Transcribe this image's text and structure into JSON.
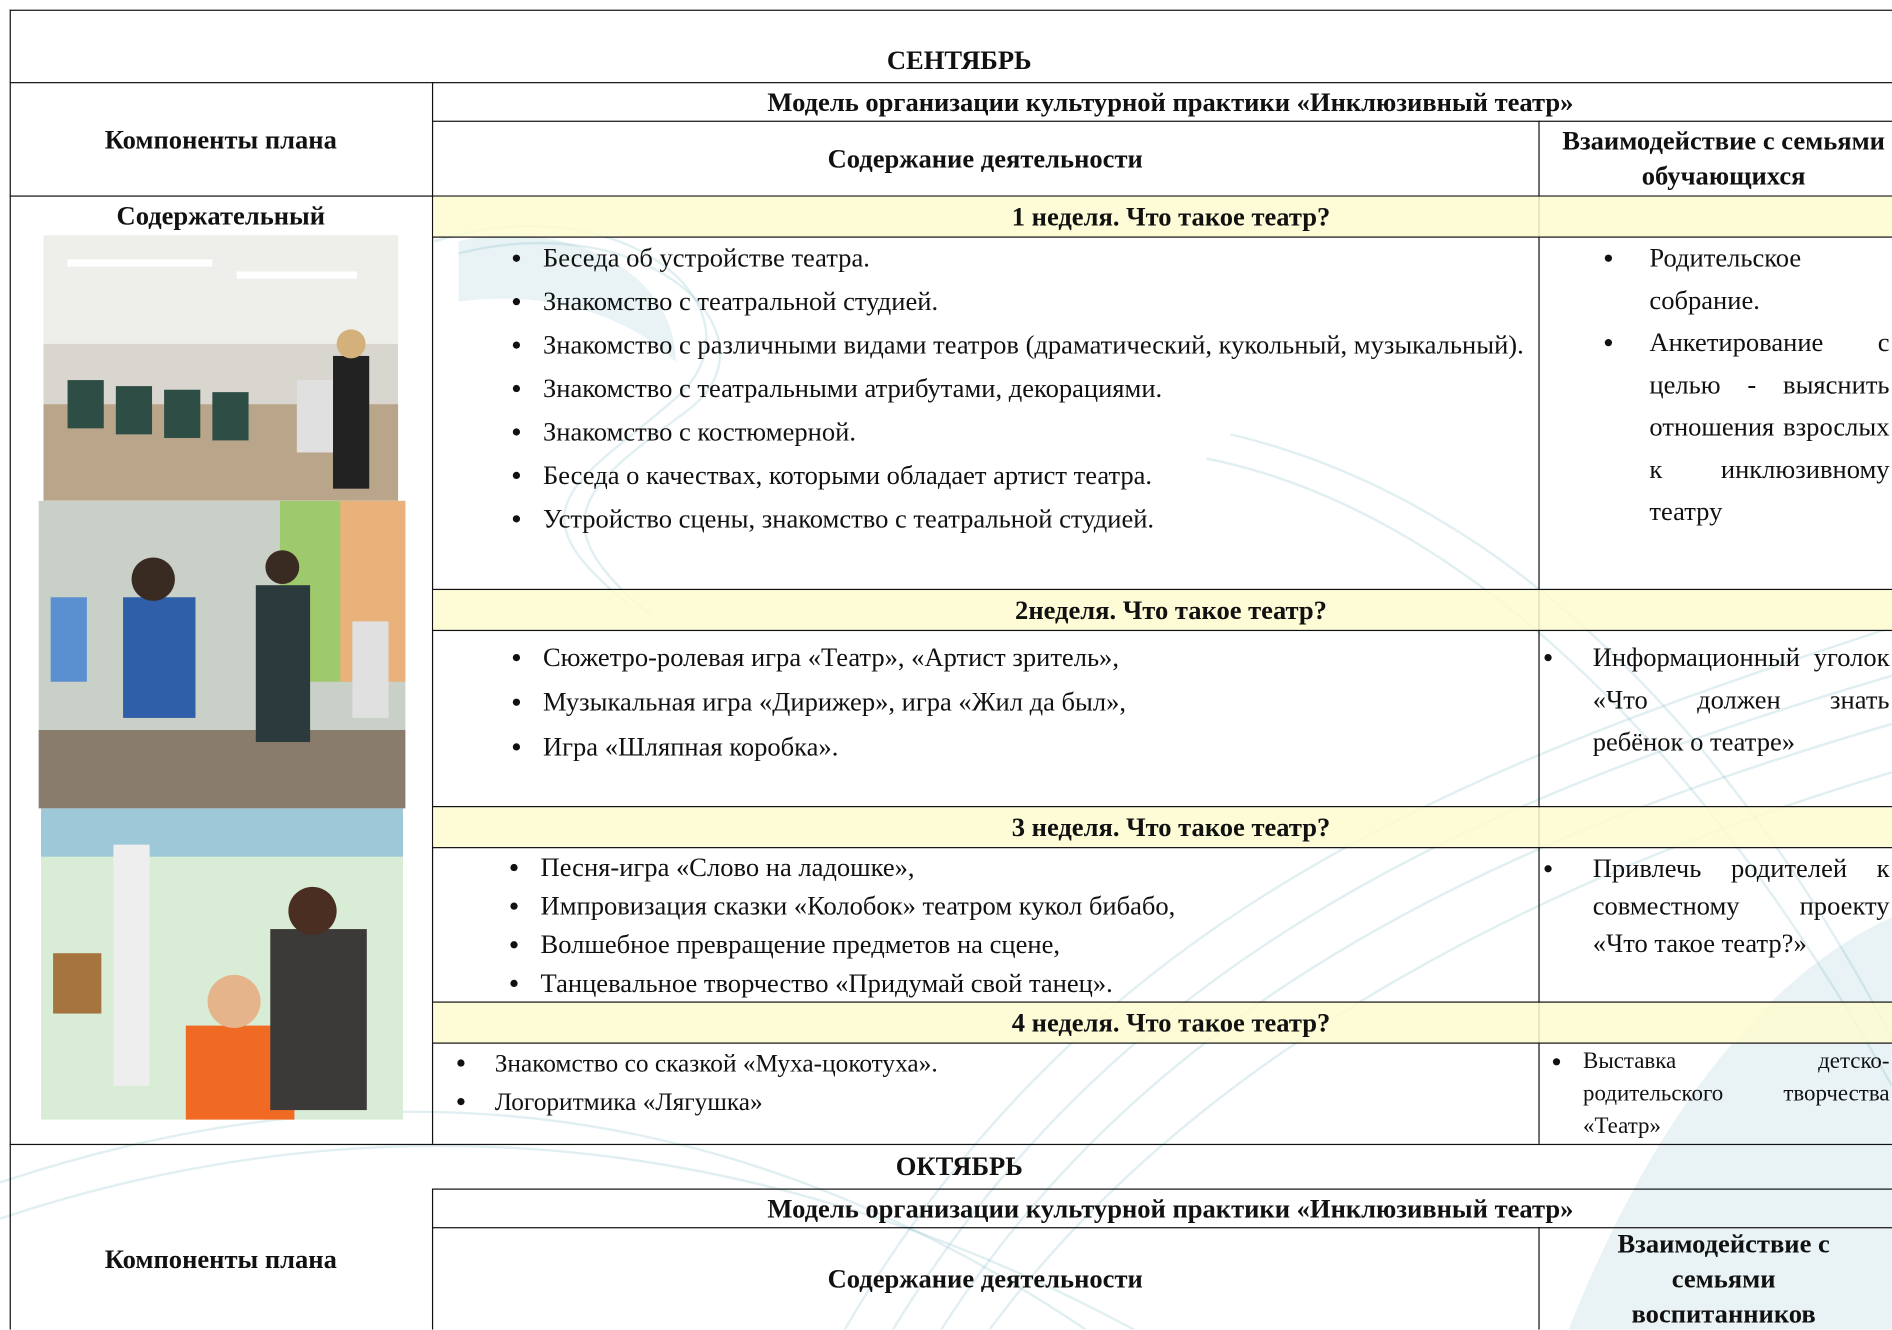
{
  "months": [
    {
      "title": "СЕНТЯБРЬ",
      "components_header": "Компоненты плана",
      "model_title": "Модель организации культурной практики «Инклюзивный театр»",
      "content_header": "Содержание деятельности",
      "family_header": "Взаимодействие с семьями обучающихся",
      "component": "Содержательный",
      "weeks": [
        {
          "title": "1 неделя. Что такое театр?",
          "activities": [
            "Беседа об устройстве театра.",
            "Знакомство с театральной студией.",
            "Знакомство с различными видами театров (драматический, кукольный, музыкальный).",
            "Знакомство с театральными атрибутами, декорациями.",
            "Знакомство с костюмерной.",
            "Беседа о качествах, которыми обладает артист театра.",
            "Устройство сцены, знакомство с театральной студией."
          ],
          "family": [
            "Родительское собрание.",
            "Анкетирование с целью - выяснить отношения взрослых к инклюзивному театру"
          ]
        },
        {
          "title": "2неделя. Что такое театр?",
          "activities": [
            "Сюжетро-ролевая игра «Театр», «Артист зритель»,",
            "Музыкальная игра «Дирижер», игра «Жил да был»,",
            "Игра «Шляпная коробка»."
          ],
          "family": [
            "Информационный уголок «Что должен знать ребёнок о театре»"
          ]
        },
        {
          "title": "3 неделя. Что такое театр?",
          "activities": [
            "Песня-игра «Слово на ладошке»,",
            "Импровизация сказки «Колобок» театром кукол бибабо,",
            "Волшебное превращение предметов на сцене,",
            "Танцевальное творчество «Придумай свой танец»."
          ],
          "family": [
            "Привлечь родителей к совместному проекту «Что такое театр?»"
          ]
        },
        {
          "title": "4 неделя. Что такое театр?",
          "activities": [
            "Знакомство со сказкой «Муха-цокотуха».",
            "Логоритмика «Лягушка»"
          ],
          "family": [
            "Выставка детско-родительского творчества «Театр»"
          ]
        }
      ]
    },
    {
      "title": "ОКТЯБРЬ",
      "components_header": "Компоненты плана",
      "model_title": "Модель организации культурной практики «Инклюзивный театр»",
      "content_header": "Содержание деятельности",
      "family_header": "Взаимодействие с семьями воспитанников"
    }
  ]
}
